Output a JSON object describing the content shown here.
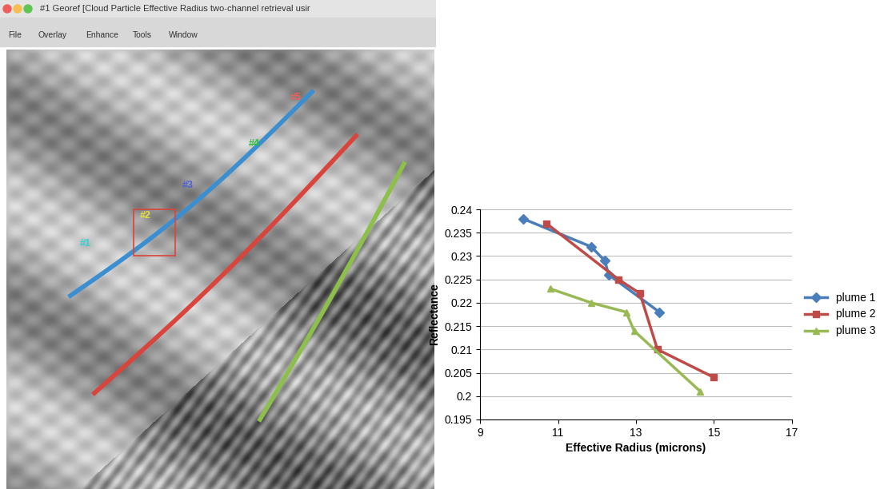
{
  "chart_data": {
    "type": "line",
    "xlabel": "Effective Radius (microns)",
    "ylabel": "Reflectance",
    "xlim": [
      9,
      17
    ],
    "xticks": [
      9,
      11,
      13,
      15,
      17
    ],
    "ylim": [
      0.195,
      0.24
    ],
    "yticks": [
      0.195,
      0.2,
      0.205,
      0.21,
      0.215,
      0.22,
      0.225,
      0.23,
      0.235,
      0.24
    ],
    "grid": "y",
    "legend": "right",
    "series": [
      {
        "name": "plume 1",
        "color": "#4a7ebb",
        "marker": "diamond",
        "x": [
          10.1,
          11.85,
          12.2,
          12.3,
          13.6
        ],
        "values": [
          0.238,
          0.232,
          0.229,
          0.226,
          0.218
        ]
      },
      {
        "name": "plume 2",
        "color": "#be4b48",
        "marker": "square",
        "x": [
          10.7,
          12.55,
          13.1,
          13.55,
          15.0
        ],
        "values": [
          0.237,
          0.225,
          0.222,
          0.21,
          0.204
        ]
      },
      {
        "name": "plume 3",
        "color": "#98b954",
        "marker": "triangle",
        "x": [
          10.8,
          11.85,
          12.75,
          12.95,
          14.65
        ],
        "values": [
          0.223,
          0.22,
          0.218,
          0.214,
          0.201
        ]
      }
    ]
  },
  "screenshot": {
    "window_title": "#1 Georef [Cloud Particle Effective Radius two-channel retrieval usir",
    "menu": [
      "File",
      "Overlay",
      "Enhance",
      "Tools",
      "Window"
    ],
    "annotations": [
      "#1",
      "#2",
      "#3",
      "#4",
      "#5"
    ]
  }
}
